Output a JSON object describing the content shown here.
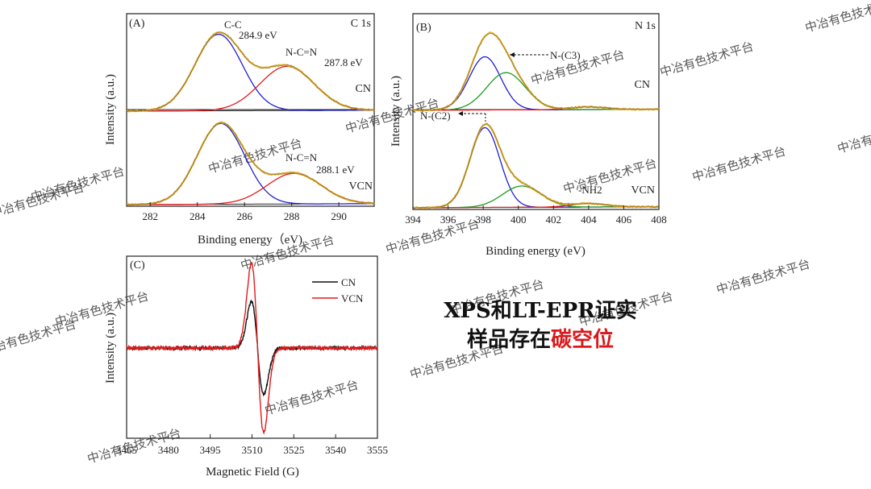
{
  "caption": {
    "line1": "XPS和LT-EPR证实",
    "line2_prefix": "样品存在",
    "line2_highlight": "碳空位",
    "highlight_color": "#d7191c"
  },
  "watermark": "中冶有色技术平台",
  "colors": {
    "blue": "#1f1fd0",
    "red": "#e31a1c",
    "green": "#1f9a1f",
    "gold": "#e0a81c",
    "black": "#111111"
  },
  "chart_data": [
    {
      "id": "A",
      "type": "line",
      "label": "(A)",
      "corner_label": "C 1s",
      "xlabel": "Binding energy（eV)",
      "ylabel": "Intensity (a.u.)",
      "xlim": [
        281,
        291.5
      ],
      "xticks": [
        282,
        284,
        286,
        288,
        290
      ],
      "panels": [
        {
          "name": "CN",
          "offset": 1.1,
          "peaks": [
            {
              "label": "C-C",
              "energy_label": "284.9 eV",
              "center": 284.9,
              "height": 0.9,
              "sigma": 1.0,
              "color": "blue"
            },
            {
              "label": "N-C=N",
              "energy_label": "287.8 eV",
              "center": 287.8,
              "height": 0.52,
              "sigma": 1.15,
              "color": "red"
            }
          ]
        },
        {
          "name": "VCN",
          "offset": 0.0,
          "peaks": [
            {
              "label": "",
              "energy_label": "",
              "center": 285.0,
              "height": 0.95,
              "sigma": 1.0,
              "color": "blue"
            },
            {
              "label": "N-C=N",
              "energy_label": "288.1 eV",
              "center": 288.1,
              "height": 0.36,
              "sigma": 1.15,
              "color": "red"
            }
          ]
        }
      ]
    },
    {
      "id": "B",
      "type": "line",
      "label": "(B)",
      "corner_label": "N 1s",
      "xlabel": "Binding energy (eV)",
      "ylabel": "Intensity (a.u.)",
      "xlim": [
        394,
        408
      ],
      "xticks": [
        394,
        396,
        398,
        400,
        402,
        404,
        406,
        408
      ],
      "panels": [
        {
          "name": "CN",
          "offset": 1.1,
          "peaks": [
            {
              "label": "",
              "center": 398.1,
              "height": 0.6,
              "sigma": 0.9,
              "color": "blue"
            },
            {
              "label": "N-(C3)",
              "center": 399.3,
              "height": 0.42,
              "sigma": 1.1,
              "color": "green"
            },
            {
              "label": "",
              "center": 404.0,
              "height": 0.03,
              "sigma": 1.0,
              "color": "red"
            }
          ]
        },
        {
          "name": "VCN",
          "offset": 0.0,
          "peaks": [
            {
              "label": "N-(C2)",
              "center": 398.1,
              "height": 0.9,
              "sigma": 0.85,
              "color": "blue"
            },
            {
              "label": "",
              "center": 400.2,
              "height": 0.24,
              "sigma": 1.1,
              "color": "green"
            },
            {
              "label": "-NH2",
              "center": 404.0,
              "height": 0.04,
              "sigma": 1.0,
              "color": "red"
            }
          ]
        }
      ]
    },
    {
      "id": "C",
      "type": "line",
      "label": "(C)",
      "xlabel": "Magnetic Field (G)",
      "ylabel": "Intensity (a.u.)",
      "xlim": [
        3465,
        3555
      ],
      "xticks": [
        3465,
        3480,
        3495,
        3510,
        3525,
        3540,
        3555
      ],
      "center": 3512,
      "width": 2.2,
      "series": [
        {
          "name": "CN",
          "color": "black",
          "amplitude": 0.55
        },
        {
          "name": "VCN",
          "color": "red",
          "amplitude": 1.0
        }
      ]
    }
  ]
}
